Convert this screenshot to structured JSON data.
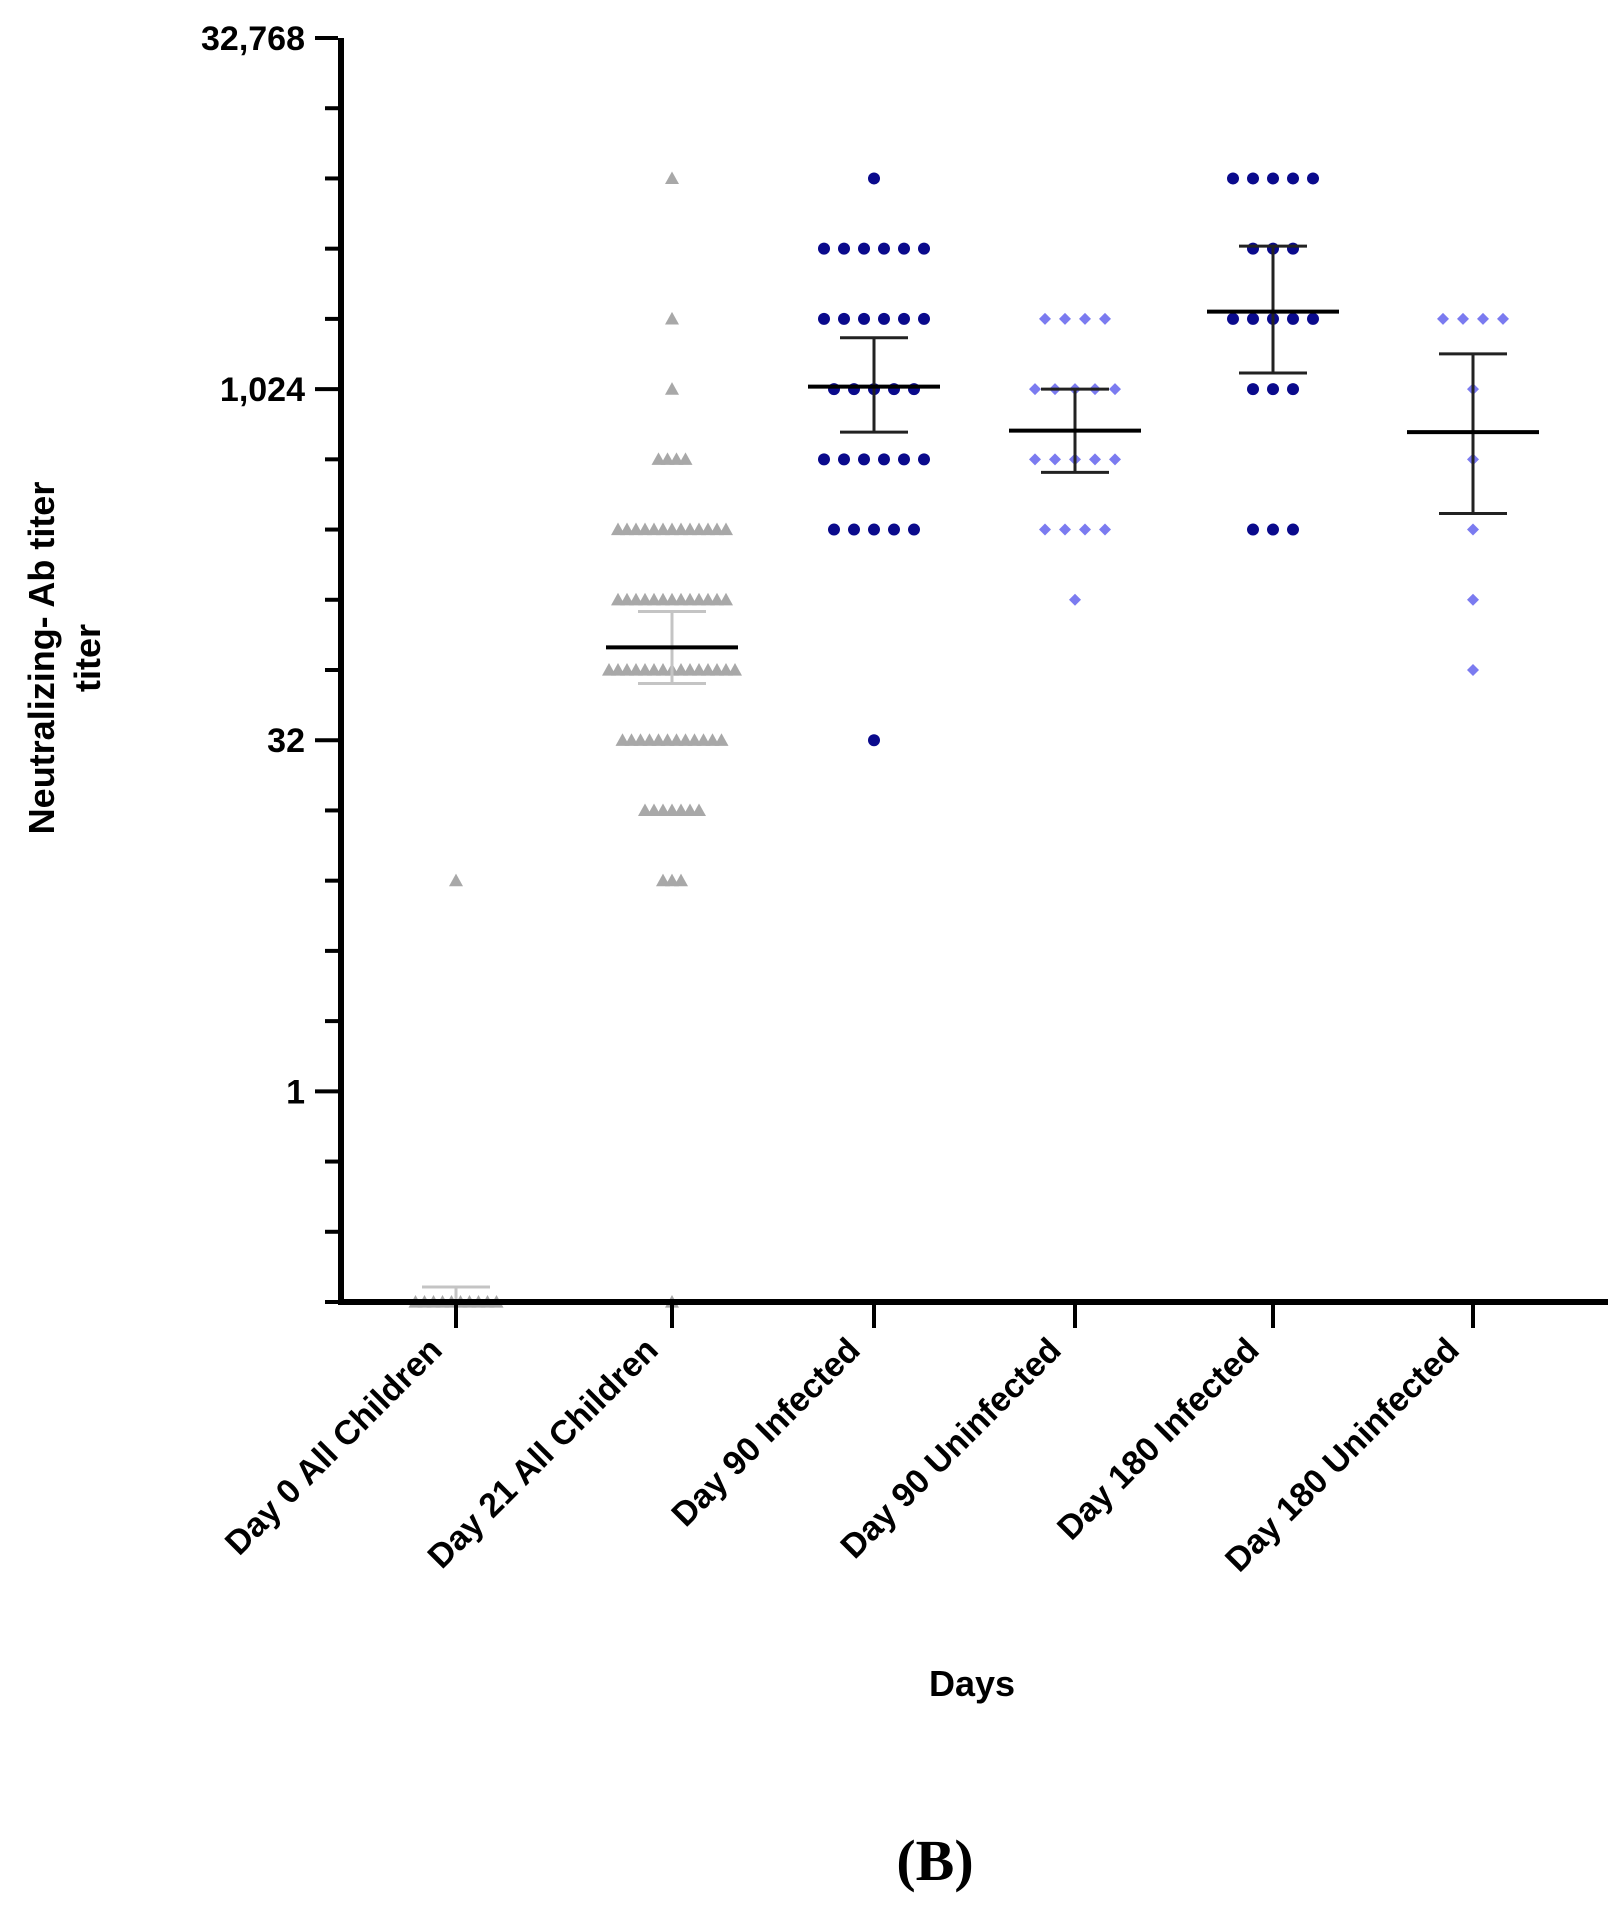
{
  "chart_data": {
    "type": "scatter",
    "panel_label": "(B)",
    "xlabel": "Days",
    "ylabel_line1": "Neutralizing- Ab titer",
    "ylabel_line2": "titer",
    "yscale": "log2",
    "ylim": [
      0.125,
      32768
    ],
    "yticks": [
      {
        "value": 32768,
        "label": "32,768"
      },
      {
        "value": 1024,
        "label": "1,024"
      },
      {
        "value": 32,
        "label": "32"
      },
      {
        "value": 1,
        "label": "1"
      }
    ],
    "categories": [
      "Day 0 All Children",
      "Day 21 All Children",
      "Day 90 Infected",
      "Day 90 Uninfected",
      "Day 180 Infected",
      "Day 180 Uninfected"
    ],
    "colors": {
      "gray": "#a8a8a8",
      "navy": "#0a0a8c",
      "light_blue": "#7b7bf0",
      "axis": "#000000",
      "mean_line": "#000000"
    },
    "series": [
      {
        "category": "Day 0 All Children",
        "marker": "triangle",
        "color": "#a8a8a8",
        "points": [
          {
            "value": 8,
            "count": 1
          },
          {
            "value": 0.125,
            "count": 10
          }
        ],
        "mean": 0.125,
        "error": [
          0.125,
          0.145
        ]
      },
      {
        "category": "Day 21 All Children",
        "marker": "triangle",
        "color": "#a8a8a8",
        "points": [
          {
            "value": 8192,
            "count": 1
          },
          {
            "value": 2048,
            "count": 1
          },
          {
            "value": 1024,
            "count": 1
          },
          {
            "value": 512,
            "count": 4
          },
          {
            "value": 256,
            "count": 13
          },
          {
            "value": 128,
            "count": 13
          },
          {
            "value": 64,
            "count": 15
          },
          {
            "value": 32,
            "count": 12
          },
          {
            "value": 16,
            "count": 7
          },
          {
            "value": 8,
            "count": 3
          },
          {
            "value": 0.125,
            "count": 1
          }
        ],
        "mean": 80,
        "error": [
          56,
          114
        ]
      },
      {
        "category": "Day 90 Infected",
        "marker": "circle",
        "color": "#0a0a8c",
        "points": [
          {
            "value": 8192,
            "count": 1
          },
          {
            "value": 4096,
            "count": 6
          },
          {
            "value": 2048,
            "count": 6
          },
          {
            "value": 1024,
            "count": 5
          },
          {
            "value": 512,
            "count": 6
          },
          {
            "value": 256,
            "count": 5
          },
          {
            "value": 32,
            "count": 1
          }
        ],
        "mean": 1050,
        "error": [
          670,
          1700
        ]
      },
      {
        "category": "Day 90 Uninfected",
        "marker": "diamond",
        "color": "#7b7bf0",
        "points": [
          {
            "value": 2048,
            "count": 4
          },
          {
            "value": 1024,
            "count": 5
          },
          {
            "value": 512,
            "count": 5
          },
          {
            "value": 256,
            "count": 4
          },
          {
            "value": 128,
            "count": 1
          }
        ],
        "mean": 680,
        "error": [
          450,
          1024
        ]
      },
      {
        "category": "Day 180 Infected",
        "marker": "circle",
        "color": "#0a0a8c",
        "points": [
          {
            "value": 8192,
            "count": 5
          },
          {
            "value": 4096,
            "count": 3
          },
          {
            "value": 2048,
            "count": 5
          },
          {
            "value": 1024,
            "count": 3
          },
          {
            "value": 256,
            "count": 3
          }
        ],
        "mean": 2200,
        "error": [
          1200,
          4200
        ]
      },
      {
        "category": "Day 180 Uninfected",
        "marker": "diamond",
        "color": "#7b7bf0",
        "points": [
          {
            "value": 2048,
            "count": 4
          },
          {
            "value": 1024,
            "count": 1
          },
          {
            "value": 512,
            "count": 1
          },
          {
            "value": 256,
            "count": 1
          },
          {
            "value": 128,
            "count": 1
          },
          {
            "value": 64,
            "count": 1
          }
        ],
        "mean": 670,
        "error": [
          300,
          1450
        ]
      }
    ]
  }
}
